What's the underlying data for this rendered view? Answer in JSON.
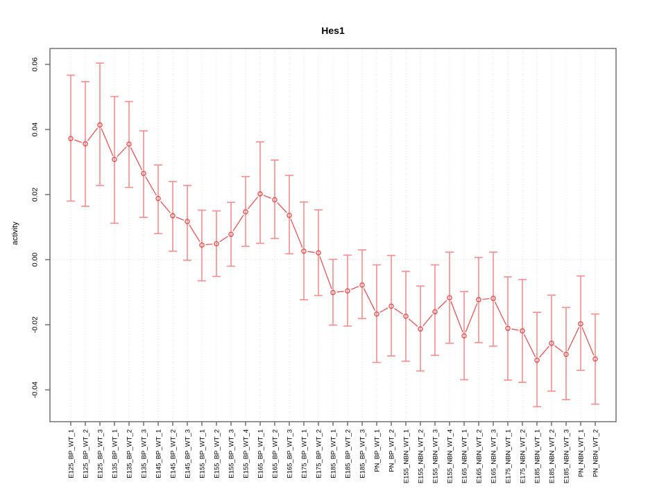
{
  "chart_data": {
    "type": "scatter",
    "title": "Hes1",
    "xlabel": "",
    "ylabel": "activity",
    "ylim": [
      -0.0498,
      0.0649
    ],
    "grid": "vertical dotted gridline at every category; horizontal dotted line at y=0 only",
    "legend": "none",
    "x_tick_rotation": 90,
    "marker": "open-circle",
    "line_between_points": true,
    "categories": [
      "E125_BP_WT_1",
      "E125_BP_WT_2",
      "E125_BP_WT_3",
      "E135_BP_WT_1",
      "E135_BP_WT_2",
      "E135_BP_WT_3",
      "E145_BP_WT_1",
      "E145_BP_WT_2",
      "E145_BP_WT_3",
      "E155_BP_WT_1",
      "E155_BP_WT_2",
      "E155_BP_WT_3",
      "E155_BP_WT_4",
      "E165_BP_WT_1",
      "E165_BP_WT_2",
      "E165_BP_WT_3",
      "E175_BP_WT_1",
      "E175_BP_WT_2",
      "E185_BP_WT_1",
      "E185_BP_WT_2",
      "E185_BP_WT_3",
      "PN_BP_WT_1",
      "PN_BP_WT_2",
      "E155_NBN_WT_1",
      "E155_NBN_WT_2",
      "E155_NBN_WT_3",
      "E155_NBN_WT_4",
      "E165_NBN_WT_1",
      "E165_NBN_WT_2",
      "E165_NBN_WT_3",
      "E175_NBN_WT_1",
      "E175_NBN_WT_2",
      "E185_NBN_WT_1",
      "E185_NBN_WT_2",
      "E185_NBN_WT_3",
      "PN_NBN_WT_1",
      "PN_NBN_WT_2"
    ],
    "values": [
      0.0372,
      0.0356,
      0.0414,
      0.0308,
      0.0355,
      0.0265,
      0.0188,
      0.0135,
      0.0117,
      0.0045,
      0.0049,
      0.0078,
      0.0147,
      0.0202,
      0.0184,
      0.0136,
      0.0026,
      0.0021,
      -0.0101,
      -0.0096,
      -0.0078,
      -0.0167,
      -0.0143,
      -0.0174,
      -0.0213,
      -0.016,
      -0.0117,
      -0.0234,
      -0.0123,
      -0.0119,
      -0.0211,
      -0.0219,
      -0.0309,
      -0.0257,
      -0.0291,
      -0.0197,
      -0.0305
    ],
    "error_high": [
      0.0567,
      0.0547,
      0.0604,
      0.0501,
      0.0486,
      0.0396,
      0.0291,
      0.024,
      0.0228,
      0.0152,
      0.015,
      0.0176,
      0.0255,
      0.0362,
      0.0306,
      0.0259,
      0.0177,
      0.0153,
      0.0001,
      0.0014,
      0.003,
      -0.0016,
      0.0013,
      -0.0036,
      -0.0081,
      -0.0016,
      0.0023,
      -0.0098,
      0.0007,
      0.0023,
      -0.0053,
      -0.0061,
      -0.0162,
      -0.0109,
      -0.0147,
      -0.005,
      -0.0167
    ],
    "error_low": [
      0.018,
      0.0164,
      0.0228,
      0.0112,
      0.0222,
      0.013,
      0.008,
      0.0026,
      -0.0002,
      -0.0065,
      -0.0052,
      -0.002,
      0.0041,
      0.005,
      0.0065,
      0.0018,
      -0.0123,
      -0.011,
      -0.0201,
      -0.0204,
      -0.0181,
      -0.0316,
      -0.0296,
      -0.0312,
      -0.0342,
      -0.0294,
      -0.0257,
      -0.0369,
      -0.0255,
      -0.0266,
      -0.037,
      -0.0377,
      -0.0452,
      -0.0404,
      -0.043,
      -0.034,
      -0.0444
    ],
    "y_ticks": [
      0.06,
      0.04,
      0.02,
      0.0,
      -0.02,
      -0.04
    ],
    "y_tick_labels": [
      "0.06",
      "0.04",
      "0.02",
      "0.00",
      "-0.02",
      "-0.04"
    ]
  },
  "colors": {
    "error_bar": "#f68c8c",
    "point_and_line": "#e84646",
    "gridline": "#d9d9d9",
    "zero_line": "#d0d0d0",
    "frame": "#666666",
    "label_text": "#000000",
    "background": "#ffffff"
  }
}
